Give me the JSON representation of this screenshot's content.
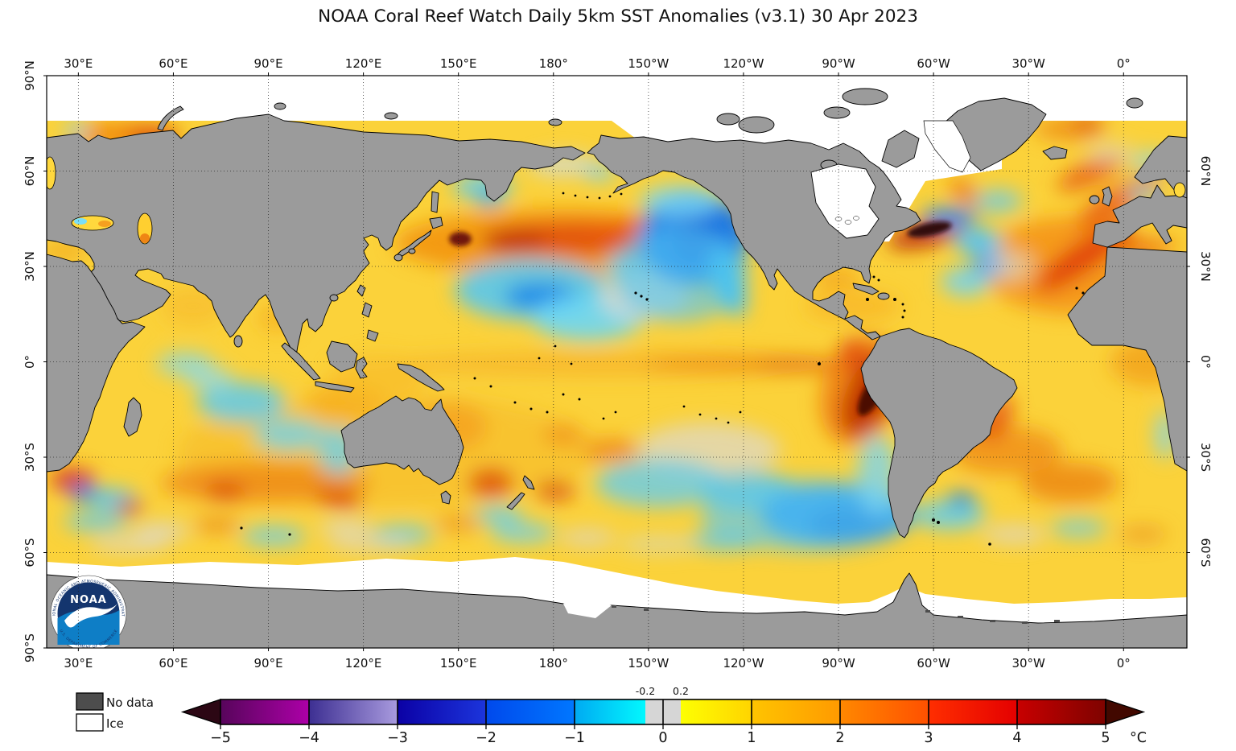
{
  "title": "NOAA Coral Reef Watch Daily 5km SST Anomalies  (v3.1)   30 Apr 2023",
  "map": {
    "lon_ticks": [
      {
        "label": "30°E",
        "lon": 30
      },
      {
        "label": "60°E",
        "lon": 60
      },
      {
        "label": "90°E",
        "lon": 90
      },
      {
        "label": "120°E",
        "lon": 120
      },
      {
        "label": "150°E",
        "lon": 150
      },
      {
        "label": "180°",
        "lon": 180
      },
      {
        "label": "150°W",
        "lon": 210
      },
      {
        "label": "120°W",
        "lon": 240
      },
      {
        "label": "90°W",
        "lon": 270
      },
      {
        "label": "60°W",
        "lon": 300
      },
      {
        "label": "30°W",
        "lon": 330
      },
      {
        "label": "0°",
        "lon": 360
      }
    ],
    "lat_ticks_left": [
      {
        "label": "90°N",
        "lat": 90
      },
      {
        "label": "60°N",
        "lat": 60
      },
      {
        "label": "30°N",
        "lat": 30
      },
      {
        "label": "0°",
        "lat": 0
      },
      {
        "label": "30°S",
        "lat": -30
      },
      {
        "label": "60°S",
        "lat": -60
      },
      {
        "label": "90°S",
        "lat": -90
      }
    ],
    "lat_ticks_right": [
      {
        "label": "60°N",
        "lat": 60
      },
      {
        "label": "30°N",
        "lat": 30
      },
      {
        "label": "0°",
        "lat": 0
      },
      {
        "label": "30°S",
        "lat": -30
      },
      {
        "label": "60°S",
        "lat": -60
      }
    ],
    "colors": {
      "land": "#9b9b9b",
      "ice": "#ffffff",
      "ocean_base": "#fbd23a",
      "coastline": "#000000",
      "no_data": "#4d4d4d",
      "grid": "#1a1a1a"
    }
  },
  "legend": {
    "no_data_label": "No data",
    "ice_label": "Ice"
  },
  "logo": {
    "text": "NOAA",
    "ring_top": "NATIONAL OCEANIC AND ATMOSPHERIC ADMINISTRATION",
    "ring_bottom": "U.S. DEPARTMENT OF COMMERCE"
  },
  "colorbar": {
    "unit": "°C",
    "ticks": [
      {
        "label": "−5",
        "v": -5
      },
      {
        "label": "−4",
        "v": -4
      },
      {
        "label": "−3",
        "v": -3
      },
      {
        "label": "−2",
        "v": -2
      },
      {
        "label": "−1",
        "v": -1
      },
      {
        "label": "0",
        "v": 0
      },
      {
        "label": "1",
        "v": 1
      },
      {
        "label": "2",
        "v": 2
      },
      {
        "label": "3",
        "v": 3
      },
      {
        "label": "4",
        "v": 4
      },
      {
        "label": "5",
        "v": 5
      }
    ],
    "threshold_labels": [
      {
        "label": "-0.2",
        "v": -0.2
      },
      {
        "label": "0.2",
        "v": 0.2
      }
    ],
    "segments": [
      {
        "v0": -5,
        "v1": -4,
        "c0": "#57055b",
        "c1": "#ad00a8"
      },
      {
        "v0": -4,
        "v1": -3,
        "c0": "#3d2f92",
        "c1": "#a89ade"
      },
      {
        "v0": -3,
        "v1": -2,
        "c0": "#0b01a5",
        "c1": "#1c35dc"
      },
      {
        "v0": -2,
        "v1": -1,
        "c0": "#0049ec",
        "c1": "#0077ff"
      },
      {
        "v0": -1,
        "v1": -0.2,
        "c0": "#00aaf2",
        "c1": "#02f8fe"
      },
      {
        "v0": -0.2,
        "v1": 0.2,
        "c0": "#d6d6d6",
        "c1": "#d6d6d6"
      },
      {
        "v0": 0.2,
        "v1": 1,
        "c0": "#fdff02",
        "c1": "#ffd400"
      },
      {
        "v0": 1,
        "v1": 2,
        "c0": "#ffc400",
        "c1": "#ff9a00"
      },
      {
        "v0": 2,
        "v1": 3,
        "c0": "#ff8800",
        "c1": "#ff5000"
      },
      {
        "v0": 3,
        "v1": 4,
        "c0": "#ff2e00",
        "c1": "#e40000"
      },
      {
        "v0": 4,
        "v1": 5,
        "c0": "#c80000",
        "c1": "#7e0300"
      }
    ],
    "left_arrow": "#2c0714",
    "right_arrow": "#420800",
    "range": [
      -5,
      5
    ]
  }
}
